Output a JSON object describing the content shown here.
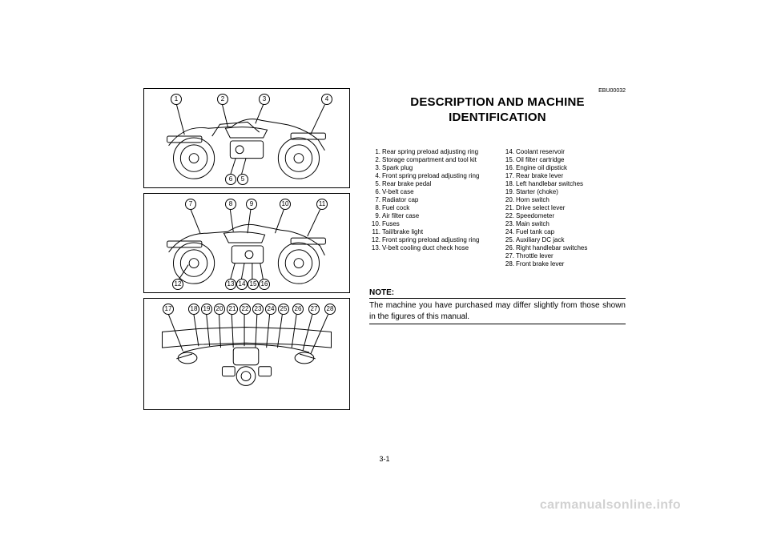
{
  "doc_code": "EBU00032",
  "heading_line1": "DESCRIPTION AND MACHINE",
  "heading_line2": "IDENTIFICATION",
  "legend_col1": [
    {
      "n": "1.",
      "t": "Rear spring preload adjusting ring"
    },
    {
      "n": "2.",
      "t": "Storage compartment and tool kit"
    },
    {
      "n": "3.",
      "t": "Spark plug"
    },
    {
      "n": "4.",
      "t": "Front spring preload adjusting ring"
    },
    {
      "n": "5.",
      "t": "Rear brake pedal"
    },
    {
      "n": "6.",
      "t": "V-belt case"
    },
    {
      "n": "7.",
      "t": "Radiator cap"
    },
    {
      "n": "8.",
      "t": "Fuel cock"
    },
    {
      "n": "9.",
      "t": "Air filter case"
    },
    {
      "n": "10.",
      "t": "Fuses"
    },
    {
      "n": "11.",
      "t": "Tail/brake light"
    },
    {
      "n": "12.",
      "t": "Front spring preload adjusting ring"
    },
    {
      "n": "13.",
      "t": "V-belt cooling duct check hose"
    }
  ],
  "legend_col2": [
    {
      "n": "14.",
      "t": "Coolant reservoir"
    },
    {
      "n": "15.",
      "t": "Oil filter cartridge"
    },
    {
      "n": "16.",
      "t": "Engine oil dipstick"
    },
    {
      "n": "17.",
      "t": "Rear brake lever"
    },
    {
      "n": "18.",
      "t": "Left handlebar switches"
    },
    {
      "n": "19.",
      "t": "Starter (choke)"
    },
    {
      "n": "20.",
      "t": "Horn switch"
    },
    {
      "n": "21.",
      "t": "Drive select lever"
    },
    {
      "n": "22.",
      "t": "Speedometer"
    },
    {
      "n": "23.",
      "t": "Main switch"
    },
    {
      "n": "24.",
      "t": "Fuel tank cap"
    },
    {
      "n": "25.",
      "t": "Auxiliary DC jack"
    },
    {
      "n": "26.",
      "t": "Right handlebar switches"
    },
    {
      "n": "27.",
      "t": "Throttle lever"
    },
    {
      "n": "28.",
      "t": "Front brake lever"
    }
  ],
  "note_title": "NOTE:",
  "note_text": "The machine you have purchased may differ slightly from those shown in the figures of this manual.",
  "page_number": "3-1",
  "watermark": "carmanualsonline.info",
  "fig1_callouts_top": [
    "1",
    "2",
    "3",
    "4"
  ],
  "fig1_callouts_bottom": [
    "6",
    "5"
  ],
  "fig2_callouts_top": [
    "7",
    "8",
    "9",
    "10",
    "11"
  ],
  "fig2_callouts_bottom_left": [
    "12"
  ],
  "fig2_callouts_bottom": [
    "13",
    "14",
    "15",
    "16"
  ],
  "fig3_callouts_left": [
    "17"
  ],
  "fig3_callouts_top": [
    "18",
    "19",
    "20",
    "21",
    "22",
    "23",
    "24",
    "25",
    "26",
    "27",
    "28"
  ]
}
